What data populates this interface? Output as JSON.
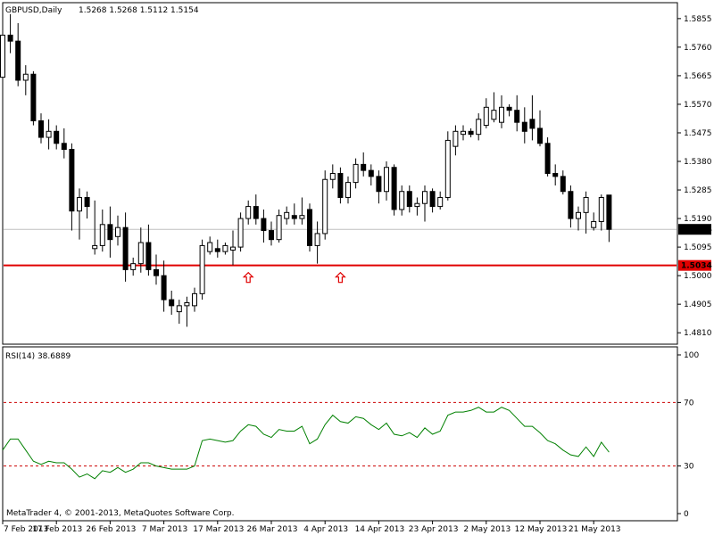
{
  "header": {
    "symbol_label": "GBPUSD,Daily",
    "ohlc_label": "1.5268 1.5268 1.5112 1.5154"
  },
  "rsi_panel": {
    "label": "RSI(14) 38.6889",
    "levels": [
      70,
      30
    ],
    "scale_ticks": [
      "100",
      "70",
      "30",
      "0"
    ]
  },
  "copyright": "MetaTrader 4, © 2001-2013, MetaQuotes Software Corp.",
  "colors": {
    "bull_candle": "#ffffff",
    "bear_candle": "#000000",
    "rsi_line": "#008000",
    "level_line": "#cc0000",
    "support_line": "#e00000",
    "bid_line": "#c0c0c0"
  },
  "chart_data": [
    {
      "type": "candlestick",
      "title": "GBPUSD,Daily",
      "ylim": [
        1.4775,
        1.5905
      ],
      "y_ticks": [
        "1.5855",
        "1.5760",
        "1.5665",
        "1.5570",
        "1.5475",
        "1.5380",
        "1.5285",
        "1.5190",
        "1.5095",
        "1.5000",
        "1.4905",
        "1.4810"
      ],
      "x_tick_labels": [
        "7 Feb 2013",
        "17 Feb 2013",
        "26 Feb 2013",
        "7 Mar 2013",
        "17 Mar 2013",
        "26 Mar 2013",
        "4 Apr 2013",
        "14 Apr 2013",
        "23 Apr 2013",
        "2 May 2013",
        "12 May 2013",
        "21 May 2013"
      ],
      "price_label": "1.5154",
      "support_label": "1.5034",
      "support_level": 1.5034,
      "bid_level": 1.5154,
      "arrow_markers": [
        "17 Mar 2013",
        "4 Apr 2013"
      ],
      "ohlc": [
        [
          1.566,
          1.581,
          1.564,
          1.58
        ],
        [
          1.58,
          1.587,
          1.574,
          1.578
        ],
        [
          1.578,
          1.584,
          1.563,
          1.565
        ],
        [
          1.565,
          1.57,
          1.56,
          1.567
        ],
        [
          1.567,
          1.568,
          1.55,
          1.5515
        ],
        [
          1.5515,
          1.554,
          1.544,
          1.546
        ],
        [
          1.546,
          1.552,
          1.542,
          1.548
        ],
        [
          1.548,
          1.55,
          1.542,
          1.544
        ],
        [
          1.544,
          1.549,
          1.539,
          1.542
        ],
        [
          1.542,
          1.544,
          1.515,
          1.5215
        ],
        [
          1.5215,
          1.529,
          1.512,
          1.526
        ],
        [
          1.526,
          1.528,
          1.519,
          1.523
        ],
        [
          1.509,
          1.525,
          1.507,
          1.51
        ],
        [
          1.51,
          1.522,
          1.508,
          1.517
        ],
        [
          1.517,
          1.523,
          1.506,
          1.512
        ],
        [
          1.513,
          1.52,
          1.51,
          1.516
        ],
        [
          1.516,
          1.521,
          1.498,
          1.502
        ],
        [
          1.502,
          1.506,
          1.5,
          1.504
        ],
        [
          1.504,
          1.516,
          1.501,
          1.511
        ],
        [
          1.511,
          1.517,
          1.5,
          1.502
        ],
        [
          1.502,
          1.507,
          1.497,
          1.5
        ],
        [
          1.5,
          1.505,
          1.488,
          1.492
        ],
        [
          1.492,
          1.495,
          1.487,
          1.49
        ],
        [
          1.488,
          1.492,
          1.484,
          1.49
        ],
        [
          1.49,
          1.493,
          1.483,
          1.491
        ],
        [
          1.49,
          1.496,
          1.488,
          1.494
        ],
        [
          1.494,
          1.512,
          1.492,
          1.51
        ],
        [
          1.508,
          1.513,
          1.507,
          1.511
        ],
        [
          1.509,
          1.512,
          1.506,
          1.508
        ],
        [
          1.508,
          1.511,
          1.507,
          1.51
        ],
        [
          1.5085,
          1.515,
          1.5035,
          1.5095
        ],
        [
          1.5095,
          1.521,
          1.508,
          1.519
        ],
        [
          1.519,
          1.525,
          1.517,
          1.523
        ],
        [
          1.523,
          1.527,
          1.517,
          1.519
        ],
        [
          1.519,
          1.522,
          1.511,
          1.515
        ],
        [
          1.515,
          1.518,
          1.51,
          1.512
        ],
        [
          1.512,
          1.522,
          1.511,
          1.52
        ],
        [
          1.519,
          1.523,
          1.517,
          1.521
        ],
        [
          1.52,
          1.524,
          1.517,
          1.519
        ],
        [
          1.519,
          1.526,
          1.517,
          1.52
        ],
        [
          1.522,
          1.524,
          1.508,
          1.51
        ],
        [
          1.51,
          1.518,
          1.504,
          1.514
        ],
        [
          1.514,
          1.535,
          1.512,
          1.532
        ],
        [
          1.532,
          1.537,
          1.529,
          1.534
        ],
        [
          1.534,
          1.536,
          1.524,
          1.526
        ],
        [
          1.526,
          1.533,
          1.524,
          1.531
        ],
        [
          1.531,
          1.539,
          1.529,
          1.537
        ],
        [
          1.537,
          1.541,
          1.533,
          1.535
        ],
        [
          1.535,
          1.537,
          1.53,
          1.533
        ],
        [
          1.533,
          1.535,
          1.524,
          1.528
        ],
        [
          1.528,
          1.538,
          1.525,
          1.536
        ],
        [
          1.536,
          1.537,
          1.52,
          1.522
        ],
        [
          1.522,
          1.53,
          1.52,
          1.528
        ],
        [
          1.528,
          1.53,
          1.521,
          1.523
        ],
        [
          1.523,
          1.526,
          1.52,
          1.524
        ],
        [
          1.524,
          1.53,
          1.518,
          1.528
        ],
        [
          1.528,
          1.529,
          1.521,
          1.523
        ],
        [
          1.523,
          1.528,
          1.522,
          1.526
        ],
        [
          1.526,
          1.548,
          1.525,
          1.545
        ],
        [
          1.543,
          1.55,
          1.54,
          1.548
        ],
        [
          1.547,
          1.55,
          1.545,
          1.548
        ],
        [
          1.548,
          1.549,
          1.546,
          1.547
        ],
        [
          1.547,
          1.554,
          1.545,
          1.552
        ],
        [
          1.55,
          1.559,
          1.549,
          1.556
        ],
        [
          1.552,
          1.561,
          1.551,
          1.555
        ],
        [
          1.551,
          1.56,
          1.549,
          1.556
        ],
        [
          1.556,
          1.557,
          1.553,
          1.555
        ],
        [
          1.555,
          1.56,
          1.548,
          1.551
        ],
        [
          1.551,
          1.556,
          1.544,
          1.548
        ],
        [
          1.552,
          1.56,
          1.545,
          1.549
        ],
        [
          1.549,
          1.555,
          1.543,
          1.544
        ],
        [
          1.544,
          1.546,
          1.533,
          1.534
        ],
        [
          1.534,
          1.537,
          1.53,
          1.533
        ],
        [
          1.533,
          1.535,
          1.527,
          1.528
        ],
        [
          1.528,
          1.53,
          1.516,
          1.519
        ],
        [
          1.519,
          1.523,
          1.515,
          1.521
        ],
        [
          1.521,
          1.528,
          1.514,
          1.526
        ],
        [
          1.516,
          1.521,
          1.515,
          1.518
        ],
        [
          1.518,
          1.527,
          1.515,
          1.526
        ],
        [
          1.5268,
          1.5268,
          1.5112,
          1.5154
        ]
      ]
    },
    {
      "type": "line",
      "title": "RSI(14) 38.6889",
      "ylim": [
        0,
        100
      ],
      "series": [
        {
          "name": "RSI(14)",
          "values": [
            40,
            47,
            47,
            40,
            33,
            31,
            33,
            32,
            32,
            28,
            23,
            25,
            22,
            27,
            26,
            29,
            26,
            28,
            32,
            32,
            30,
            29,
            28,
            28,
            28,
            30,
            46,
            47,
            46,
            45,
            46,
            52,
            56,
            55,
            50,
            48,
            53,
            52,
            52,
            55,
            44,
            47,
            56,
            62,
            58,
            57,
            61,
            60,
            56,
            53,
            57,
            50,
            49,
            51,
            48,
            54,
            50,
            52,
            62,
            64,
            64,
            65,
            67,
            64,
            64,
            67,
            65,
            60,
            55,
            55,
            51,
            46,
            44,
            40,
            37,
            36,
            42,
            36,
            45,
            38.69
          ]
        }
      ]
    }
  ]
}
